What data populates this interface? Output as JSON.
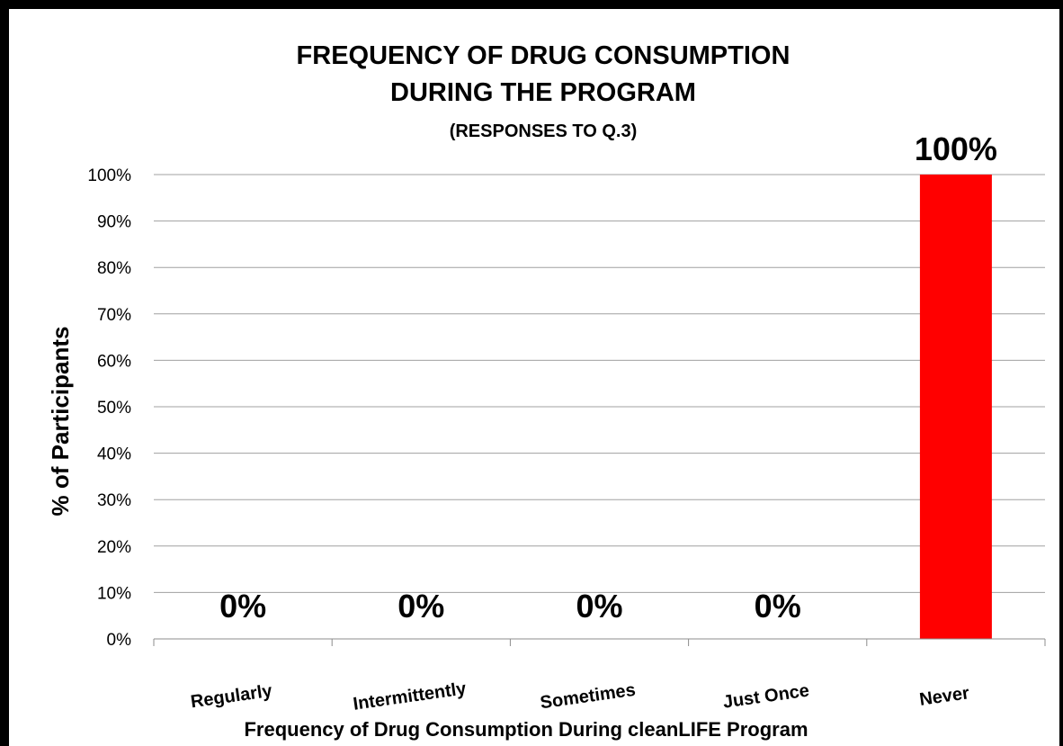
{
  "chart_data": {
    "type": "bar",
    "title_line1": "FREQUENCY OF DRUG CONSUMPTION",
    "title_line2": "DURING THE PROGRAM",
    "subtitle": "(RESPONSES TO Q.3)",
    "xlabel": "Frequency of Drug Consumption During cleanLIFE Program",
    "ylabel": "% of  Participants",
    "categories": [
      "Regularly",
      "Intermittently",
      "Sometimes",
      "Just Once",
      "Never"
    ],
    "values": [
      0,
      0,
      0,
      0,
      100
    ],
    "data_labels": [
      "0%",
      "0%",
      "0%",
      "0%",
      "100%"
    ],
    "ylim": [
      0,
      100
    ],
    "yticks": [
      0,
      10,
      20,
      30,
      40,
      50,
      60,
      70,
      80,
      90,
      100
    ],
    "ytick_labels": [
      "0%",
      "10%",
      "20%",
      "30%",
      "40%",
      "50%",
      "60%",
      "70%",
      "80%",
      "90%",
      "100%"
    ],
    "grid": true,
    "bar_color": "#ff0000"
  }
}
